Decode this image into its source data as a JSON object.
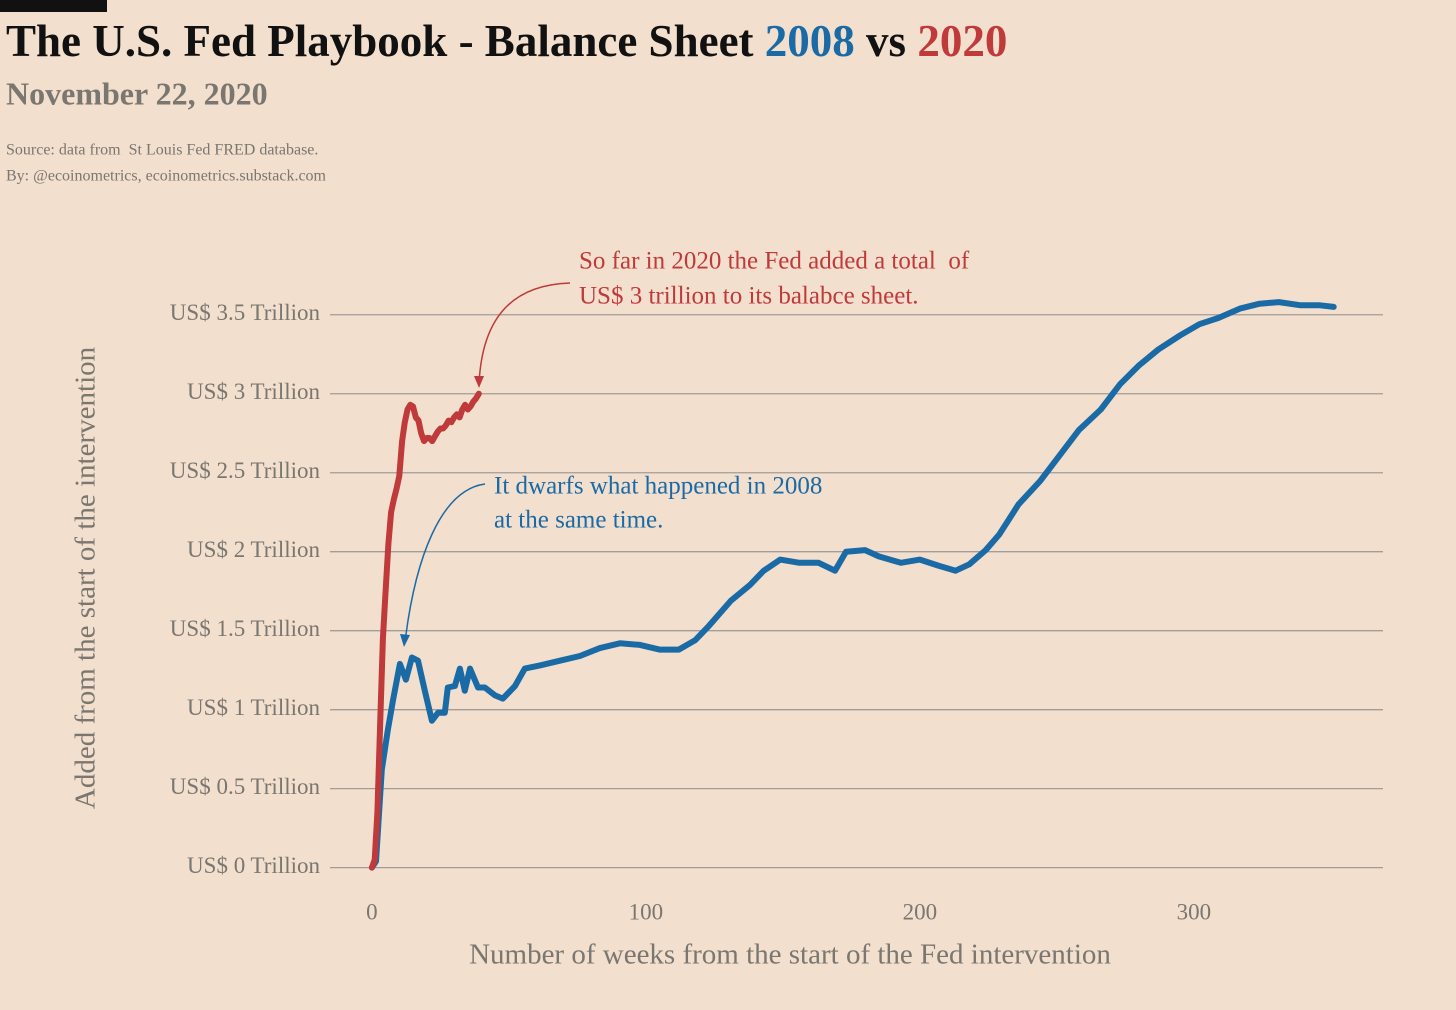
{
  "chart_data": {
    "type": "line",
    "title_parts": [
      "The U.S. Fed Playbook - Balance Sheet ",
      "2008",
      " vs ",
      "2020"
    ],
    "subtitle": "November 22, 2020",
    "source_lines": [
      "Source: data from  St Louis Fed FRED database.",
      "By: @ecoinometrics, ecoinometrics.substack.com"
    ],
    "x_label": "Number of weeks from the start of the Fed intervention",
    "y_label": "Added from the start of the intervention",
    "xlim": [
      -15.3,
      369
    ],
    "xticks": [
      0,
      100,
      200,
      300
    ],
    "ylim": [
      -0.11,
      3.91
    ],
    "yticks": [
      {
        "value": 0,
        "label": "US$ 0 Trillion"
      },
      {
        "value": 0.5,
        "label": "US$ 0.5 Trillion"
      },
      {
        "value": 1,
        "label": "US$ 1 Trillion"
      },
      {
        "value": 1.5,
        "label": "US$ 1.5 Trillion"
      },
      {
        "value": 2,
        "label": "US$ 2 Trillion"
      },
      {
        "value": 2.5,
        "label": "US$ 2.5 Trillion"
      },
      {
        "value": 3,
        "label": "US$ 3 Trillion"
      },
      {
        "value": 3.5,
        "label": "US$ 3.5 Trillion"
      }
    ],
    "grid": true,
    "series": [
      {
        "name": "2008",
        "color": "#1a6aa6",
        "x": [
          0,
          1.5,
          3.6,
          5.8,
          7.7,
          10.2,
          12.4,
          14.6,
          16.8,
          19.3,
          21.9,
          24.1,
          26.6,
          27.7,
          30.3,
          32.1,
          33.9,
          35.8,
          38.7,
          41.2,
          44.9,
          47.8,
          52.2,
          55.8,
          61.3,
          68.6,
          75.9,
          83.2,
          90.5,
          97.8,
          105,
          112,
          118,
          123,
          131,
          138,
          143,
          149,
          156,
          163,
          169,
          173,
          180,
          185,
          193,
          200,
          207,
          213,
          218,
          224,
          229,
          236,
          244,
          251,
          258,
          266,
          273,
          280,
          287,
          295,
          302,
          309,
          317,
          324,
          331,
          339,
          346,
          351
        ],
        "values": [
          0,
          0.04,
          0.62,
          0.87,
          1.06,
          1.29,
          1.19,
          1.33,
          1.31,
          1.12,
          0.93,
          0.98,
          0.98,
          1.14,
          1.15,
          1.26,
          1.12,
          1.26,
          1.14,
          1.14,
          1.09,
          1.07,
          1.15,
          1.26,
          1.28,
          1.31,
          1.34,
          1.39,
          1.42,
          1.41,
          1.38,
          1.38,
          1.44,
          1.53,
          1.69,
          1.79,
          1.88,
          1.95,
          1.93,
          1.93,
          1.88,
          2.0,
          2.01,
          1.97,
          1.93,
          1.95,
          1.91,
          1.88,
          1.92,
          2.01,
          2.11,
          2.3,
          2.45,
          2.61,
          2.77,
          2.9,
          3.06,
          3.18,
          3.28,
          3.37,
          3.44,
          3.48,
          3.54,
          3.57,
          3.58,
          3.56,
          3.56,
          3.55
        ]
      },
      {
        "name": "2020",
        "color": "#c0393b",
        "x": [
          0,
          1,
          2,
          3,
          4,
          5,
          6,
          7,
          8,
          9,
          10,
          11,
          12,
          13,
          14,
          15,
          16,
          17,
          18,
          19,
          20,
          21,
          22,
          23,
          24,
          25,
          26,
          27,
          28,
          29,
          30,
          31,
          32,
          33,
          34,
          35,
          36,
          37,
          38,
          39
        ],
        "values": [
          0,
          0.05,
          0.35,
          0.9,
          1.45,
          1.75,
          2.05,
          2.25,
          2.33,
          2.4,
          2.48,
          2.7,
          2.82,
          2.9,
          2.93,
          2.92,
          2.85,
          2.83,
          2.75,
          2.7,
          2.72,
          2.72,
          2.7,
          2.73,
          2.76,
          2.78,
          2.78,
          2.8,
          2.83,
          2.82,
          2.85,
          2.87,
          2.85,
          2.9,
          2.93,
          2.9,
          2.92,
          2.95,
          2.97,
          3.0
        ]
      }
    ],
    "annotations": [
      {
        "lines": [
          "So far in 2020 the Fed added a total  of",
          "US$ 3 trillion to its balabce sheet."
        ],
        "color": "#c0393b"
      },
      {
        "lines": [
          "It dwarfs what happened in 2008",
          "at the same time."
        ],
        "color": "#1a6aa6"
      }
    ]
  }
}
